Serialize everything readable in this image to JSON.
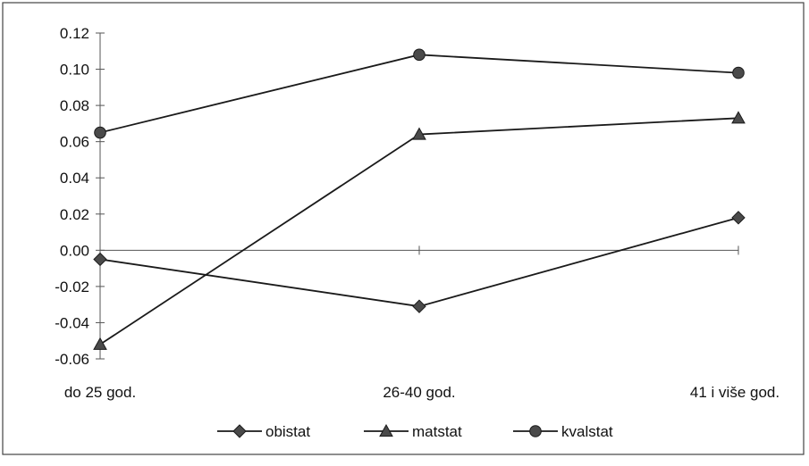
{
  "chart_data": {
    "type": "line",
    "title": "",
    "xlabel": "",
    "ylabel": "",
    "categories": [
      "do 25 god.",
      "26-40 god.",
      "41 i više god."
    ],
    "ylim": [
      -0.06,
      0.12
    ],
    "yticks": [
      "0.12",
      "0.10",
      "0.08",
      "0.06",
      "0.04",
      "0.02",
      "0.00",
      "-0.02",
      "-0.04",
      "-0.06"
    ],
    "ytick_values": [
      0.12,
      0.1,
      0.08,
      0.06,
      0.04,
      0.02,
      0.0,
      -0.02,
      -0.04,
      -0.06
    ],
    "grid": false,
    "legend_position": "bottom",
    "series": [
      {
        "name": "obistat",
        "marker": "diamond",
        "values": [
          -0.005,
          -0.031,
          0.018
        ]
      },
      {
        "name": "matstat",
        "marker": "triangle",
        "values": [
          -0.052,
          0.064,
          0.073
        ]
      },
      {
        "name": "kvalstat",
        "marker": "circle",
        "values": [
          0.065,
          0.108,
          0.098
        ]
      }
    ],
    "colors": {
      "line": "#1a1a1a",
      "marker": "#4a4a4a",
      "axis": "#555555",
      "frame": "#444444"
    }
  }
}
